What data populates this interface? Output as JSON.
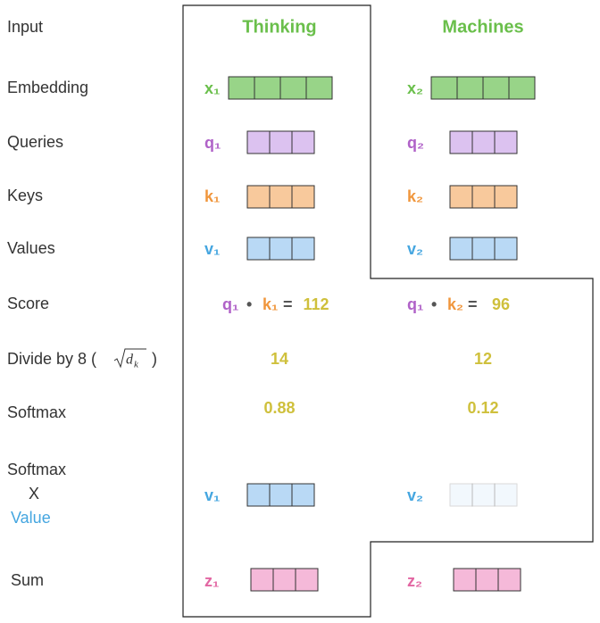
{
  "row_labels": {
    "input": "Input",
    "embedding": "Embedding",
    "queries": "Queries",
    "keys": "Keys",
    "values": "Values",
    "score": "Score",
    "divide": {
      "text": "Divide by 8 (",
      "root_base": "d",
      "root_sub": "k",
      "close": ")"
    },
    "softmax": "Softmax",
    "softmax_value": [
      "Softmax",
      "X",
      "Value"
    ],
    "sum": "Sum"
  },
  "columns": [
    {
      "word": "Thinking",
      "embedding": "x₁",
      "query": "q₁",
      "key": "k₁",
      "value": "v₁",
      "score": {
        "query": "q₁",
        "dot": "•",
        "key": "k₁",
        "equals": "=",
        "result": 112
      },
      "divided": 14,
      "softmax": 0.88,
      "weighted": "v₁",
      "sum": "z₁"
    },
    {
      "word": "Machines",
      "embedding": "x₂",
      "query": "q₂",
      "key": "k₂",
      "value": "v₂",
      "score": {
        "query": "q₁",
        "dot": "•",
        "key": "k₂",
        "equals": "=",
        "result": 96
      },
      "divided": 12,
      "softmax": 0.12,
      "weighted": "v₂",
      "sum": "z₂"
    }
  ]
}
